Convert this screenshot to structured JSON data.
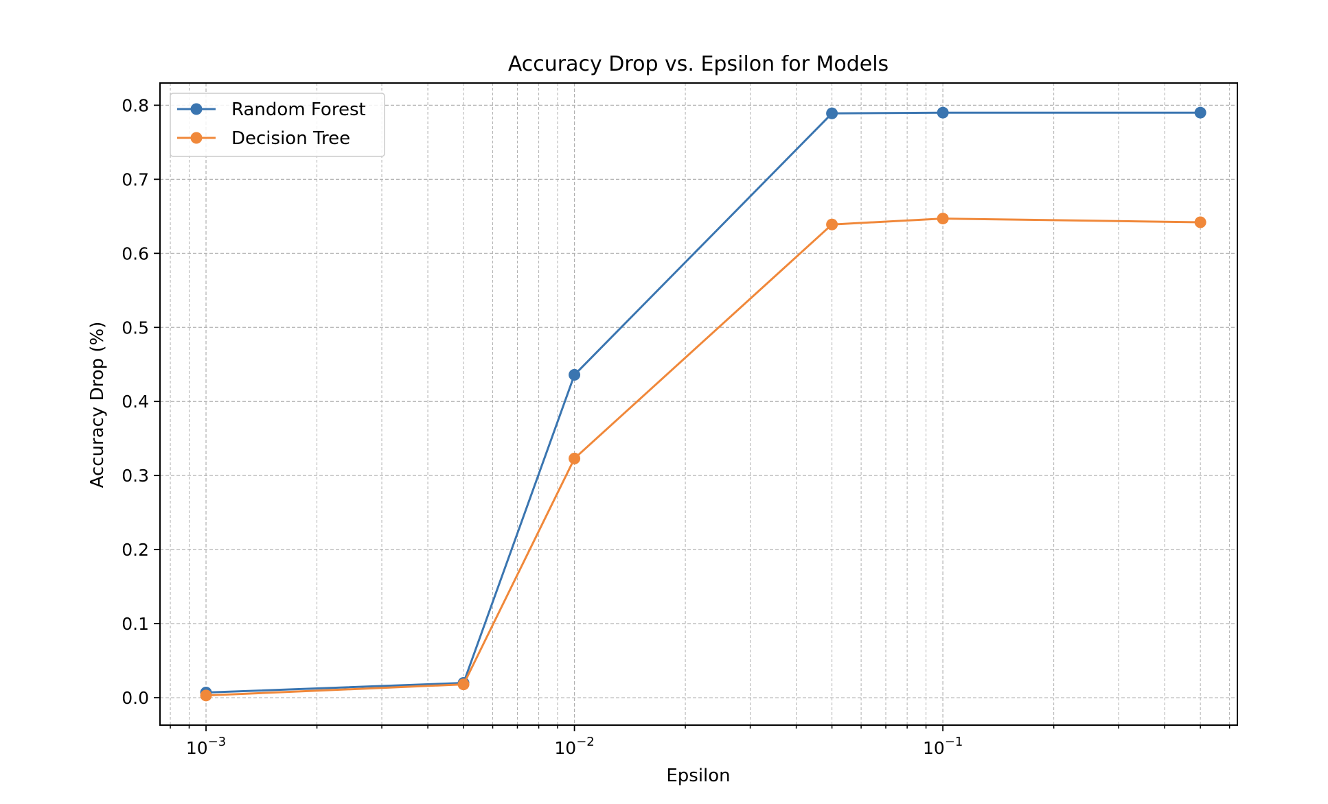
{
  "chart_data": {
    "type": "line",
    "title": "Accuracy Drop vs. Epsilon for Models",
    "xlabel": "Epsilon",
    "ylabel": "Accuracy Drop (%)",
    "x_scale": "log",
    "x": [
      0.001,
      0.005,
      0.01,
      0.05,
      0.1,
      0.5
    ],
    "x_ticks": [
      {
        "value": 0.001,
        "base": "10",
        "exp": "−3"
      },
      {
        "value": 0.01,
        "base": "10",
        "exp": "−2"
      },
      {
        "value": 0.1,
        "base": "10",
        "exp": "−1"
      }
    ],
    "y_ticks": [
      {
        "value": 0.0,
        "label": "0.0"
      },
      {
        "value": 0.1,
        "label": "0.1"
      },
      {
        "value": 0.2,
        "label": "0.2"
      },
      {
        "value": 0.3,
        "label": "0.3"
      },
      {
        "value": 0.4,
        "label": "0.4"
      },
      {
        "value": 0.5,
        "label": "0.5"
      },
      {
        "value": 0.6,
        "label": "0.6"
      },
      {
        "value": 0.7,
        "label": "0.7"
      },
      {
        "value": 0.8,
        "label": "0.8"
      }
    ],
    "xlim": [
      0.00075,
      0.63
    ],
    "ylim": [
      -0.037,
      0.83
    ],
    "grid": true,
    "legend_position": "top-left",
    "series": [
      {
        "name": "Random Forest",
        "color": "#3a75b0",
        "values": [
          0.007,
          0.02,
          0.436,
          0.789,
          0.79,
          0.79
        ]
      },
      {
        "name": "Decision Tree",
        "color": "#f0883a",
        "values": [
          0.003,
          0.018,
          0.323,
          0.639,
          0.647,
          0.642
        ]
      }
    ]
  }
}
